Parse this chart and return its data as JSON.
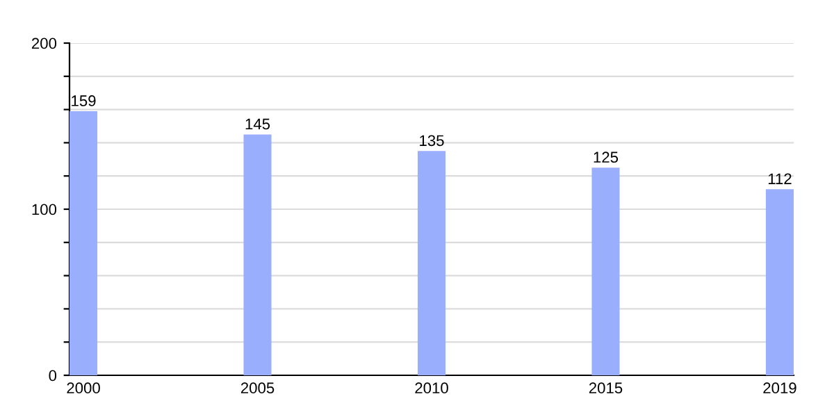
{
  "chart_data": {
    "type": "bar",
    "categories": [
      "2000",
      "2005",
      "2010",
      "2015",
      "2019"
    ],
    "values": [
      159,
      145,
      135,
      125,
      112
    ],
    "color": "#9aaefe",
    "data_labels": true,
    "ylim": [
      0,
      200
    ],
    "yticks": [
      0,
      {
        "value": 20,
        "label": null
      },
      {
        "value": 40,
        "label": null
      },
      {
        "value": 60,
        "label": null
      },
      {
        "value": 80,
        "label": null
      },
      100,
      {
        "value": 120,
        "label": null
      },
      {
        "value": 140,
        "label": null
      },
      {
        "value": 160,
        "label": null
      },
      {
        "value": 180,
        "label": null
      },
      200
    ],
    "grid": "y",
    "legend": false
  }
}
